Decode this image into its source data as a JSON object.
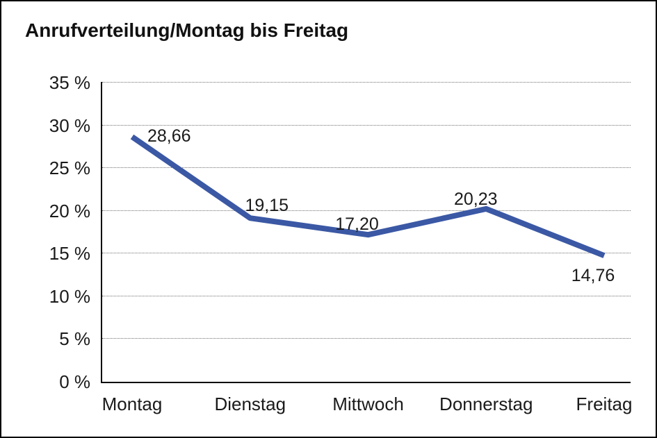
{
  "chart_data": {
    "type": "line",
    "title": "Anrufverteilung/Montag bis Freitag",
    "categories": [
      "Montag",
      "Dienstag",
      "Mittwoch",
      "Donnerstag",
      "Freitag"
    ],
    "series": [
      {
        "name": "Anrufverteilung",
        "values": [
          28.66,
          19.15,
          17.2,
          20.23,
          14.76
        ]
      }
    ],
    "value_labels": [
      "28,66",
      "19,15",
      "17,20",
      "20,23",
      "14,76"
    ],
    "ytick_labels": [
      "35 %",
      "30 %",
      "25 %",
      "20 %",
      "15 %",
      "10 %",
      "5 %",
      "0 %"
    ],
    "ytick_values": [
      35,
      30,
      25,
      20,
      15,
      10,
      5,
      0
    ],
    "ylim": [
      0,
      35
    ],
    "grid": "horizontal-dotted",
    "legend": "none",
    "line_color": "#3B58A5",
    "text_color": "#1a1a1a"
  }
}
